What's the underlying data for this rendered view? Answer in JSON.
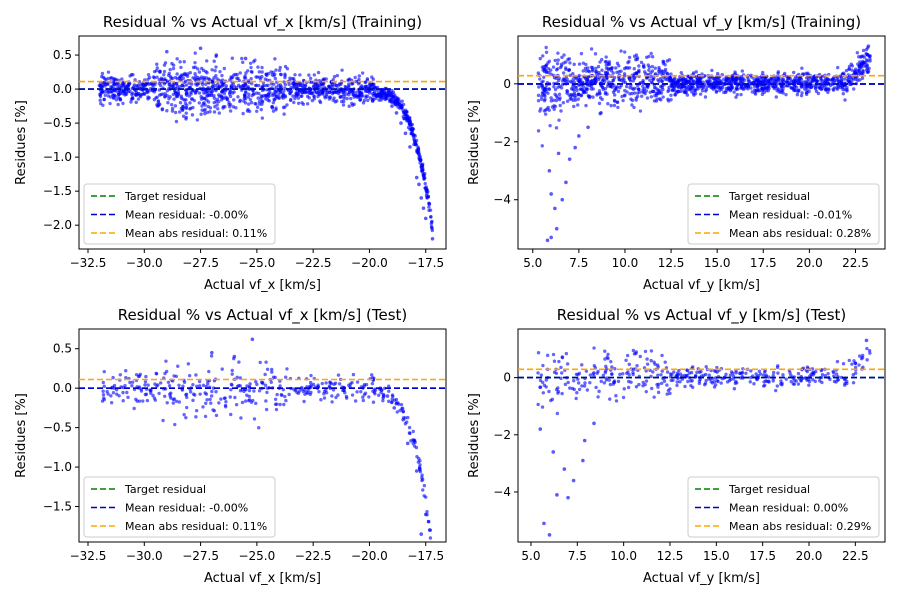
{
  "chart_data": [
    {
      "type": "scatter",
      "title": "Residual % vs Actual vf_x [km/s] (Training)",
      "xlabel": "Actual vf_x [km/s]",
      "ylabel": "Residues [%]",
      "xlim": [
        -32.9,
        -16.6
      ],
      "ylim": [
        -2.35,
        0.78
      ],
      "xticks": [
        -32.5,
        -30.0,
        -27.5,
        -25.0,
        -22.5,
        -20.0,
        -17.5
      ],
      "xtick_labels": [
        "−32.5",
        "−30.0",
        "−27.5",
        "−25.0",
        "−22.5",
        "−20.0",
        "−17.5"
      ],
      "yticks": [
        0.5,
        0.0,
        -0.5,
        -1.0,
        -1.5,
        -2.0
      ],
      "ytick_labels": [
        "0.5",
        "0.0",
        "−0.5",
        "−1.0",
        "−1.5",
        "−2.0"
      ],
      "series": [
        {
          "name": "Target residual",
          "kind": "hline",
          "y": 0.0,
          "color": "#008000"
        },
        {
          "name": "Mean residual: -0.00%",
          "kind": "hline",
          "y": -0.0,
          "color": "#0000cc"
        },
        {
          "name": "Mean abs residual: 0.11%",
          "kind": "hline",
          "y": 0.11,
          "color": "#ffa500"
        },
        {
          "name": "",
          "kind": "scatter",
          "color": "#0000ff",
          "x_range": [
            -32.0,
            -17.2
          ],
          "points": [
            [
              -17.2,
              -2.2
            ],
            [
              -17.5,
              -1.9
            ],
            [
              -17.6,
              -1.75
            ],
            [
              -17.7,
              -1.6
            ],
            [
              -17.8,
              -1.4
            ],
            [
              -17.9,
              -1.3
            ],
            [
              -18.2,
              -0.85
            ],
            [
              -18.4,
              -0.65
            ],
            [
              -18.6,
              -0.5
            ],
            [
              -18.8,
              -0.35
            ],
            [
              -19.0,
              -0.25
            ],
            [
              -19.3,
              -0.15
            ],
            [
              -29.0,
              0.55
            ],
            [
              -27.5,
              0.6
            ],
            [
              -26.8,
              0.5
            ],
            [
              -25.5,
              0.45
            ]
          ]
        }
      ],
      "legend": "lower-left"
    },
    {
      "type": "scatter",
      "title": "Residual % vs Actual vf_y [km/s] (Training)",
      "xlabel": "Actual vf_y [km/s]",
      "ylabel": "Residues [%]",
      "xlim": [
        4.2,
        24.1
      ],
      "ylim": [
        -5.7,
        1.65
      ],
      "xticks": [
        5.0,
        7.5,
        10.0,
        12.5,
        15.0,
        17.5,
        20.0,
        22.5
      ],
      "xtick_labels": [
        "5.0",
        "7.5",
        "10.0",
        "12.5",
        "15.0",
        "17.5",
        "20.0",
        "22.5"
      ],
      "yticks": [
        0,
        -2,
        -4
      ],
      "ytick_labels": [
        "0",
        "−2",
        "−4"
      ],
      "series": [
        {
          "name": "Target residual",
          "kind": "hline",
          "y": 0.0,
          "color": "#008000"
        },
        {
          "name": "Mean residual: -0.01%",
          "kind": "hline",
          "y": -0.01,
          "color": "#0000cc"
        },
        {
          "name": "Mean abs residual: 0.28%",
          "kind": "hline",
          "y": 0.28,
          "color": "#ffa500"
        },
        {
          "name": "",
          "kind": "scatter",
          "color": "#0000ff",
          "x_range": [
            5.3,
            23.3
          ],
          "points": [
            [
              5.8,
              -5.4
            ],
            [
              6.0,
              -5.3
            ],
            [
              6.3,
              -5.0
            ],
            [
              6.2,
              -4.3
            ],
            [
              6.6,
              -4.0
            ],
            [
              6.0,
              -3.8
            ],
            [
              6.8,
              -3.4
            ],
            [
              5.9,
              -3.0
            ],
            [
              7.0,
              -2.6
            ],
            [
              6.4,
              -2.4
            ],
            [
              7.3,
              -2.2
            ],
            [
              7.5,
              -1.8
            ],
            [
              8.0,
              -1.5
            ],
            [
              8.7,
              -1.0
            ],
            [
              22.8,
              0.7
            ],
            [
              23.2,
              1.3
            ]
          ]
        }
      ],
      "legend": "lower-right"
    },
    {
      "type": "scatter",
      "title": "Residual % vs Actual vf_x [km/s] (Test)",
      "xlabel": "Actual vf_x [km/s]",
      "ylabel": "Residues [%]",
      "xlim": [
        -32.9,
        -16.6
      ],
      "ylim": [
        -1.95,
        0.75
      ],
      "xticks": [
        -32.5,
        -30.0,
        -27.5,
        -25.0,
        -22.5,
        -20.0,
        -17.5
      ],
      "xtick_labels": [
        "−32.5",
        "−30.0",
        "−27.5",
        "−25.0",
        "−22.5",
        "−20.0",
        "−17.5"
      ],
      "yticks": [
        0.5,
        0.0,
        -0.5,
        -1.0,
        -1.5
      ],
      "ytick_labels": [
        "0.5",
        "0.0",
        "−0.5",
        "−1.0",
        "−1.5"
      ],
      "series": [
        {
          "name": "Target residual",
          "kind": "hline",
          "y": 0.0,
          "color": "#008000"
        },
        {
          "name": "Mean residual: -0.00%",
          "kind": "hline",
          "y": -0.0,
          "color": "#0000cc"
        },
        {
          "name": "Mean abs residual: 0.11%",
          "kind": "hline",
          "y": 0.11,
          "color": "#ffa500"
        },
        {
          "name": "",
          "kind": "scatter",
          "color": "#0000ff",
          "x_range": [
            -32.0,
            -17.2
          ],
          "points": [
            [
              -17.3,
              -1.8
            ],
            [
              -17.5,
              -1.6
            ],
            [
              -17.7,
              -1.85
            ],
            [
              -17.9,
              -1.05
            ],
            [
              -18.3,
              -0.7
            ],
            [
              -18.5,
              -0.4
            ],
            [
              -18.9,
              -0.25
            ],
            [
              -19.2,
              -0.1
            ],
            [
              -25.2,
              0.62
            ],
            [
              -27.0,
              0.45
            ],
            [
              -26.0,
              0.4
            ]
          ]
        }
      ],
      "legend": "lower-left"
    },
    {
      "type": "scatter",
      "title": "Residual % vs Actual vf_y [km/s] (Test)",
      "xlabel": "Actual vf_y [km/s]",
      "ylabel": "Residues [%]",
      "xlim": [
        4.3,
        24.1
      ],
      "ylim": [
        -5.75,
        1.7
      ],
      "xticks": [
        5.0,
        7.5,
        10.0,
        12.5,
        15.0,
        17.5,
        20.0,
        22.5
      ],
      "xtick_labels": [
        "5.0",
        "7.5",
        "10.0",
        "12.5",
        "15.0",
        "17.5",
        "20.0",
        "22.5"
      ],
      "yticks": [
        0,
        -2,
        -4
      ],
      "ytick_labels": [
        "0",
        "−2",
        "−4"
      ],
      "series": [
        {
          "name": "Target residual",
          "kind": "hline",
          "y": 0.0,
          "color": "#008000"
        },
        {
          "name": "Mean residual: 0.00%",
          "kind": "hline",
          "y": 0.0,
          "color": "#0000cc"
        },
        {
          "name": "Mean abs residual: 0.29%",
          "kind": "hline",
          "y": 0.29,
          "color": "#ffa500"
        },
        {
          "name": "",
          "kind": "scatter",
          "color": "#0000ff",
          "x_range": [
            5.3,
            23.3
          ],
          "points": [
            [
              6.0,
              -5.5
            ],
            [
              5.7,
              -5.1
            ],
            [
              6.4,
              -4.1
            ],
            [
              7.0,
              -4.2
            ],
            [
              7.3,
              -3.6
            ],
            [
              6.8,
              -3.2
            ],
            [
              7.8,
              -2.9
            ],
            [
              6.2,
              -2.6
            ],
            [
              7.9,
              -2.2
            ],
            [
              8.4,
              -1.6
            ],
            [
              5.5,
              -1.8
            ],
            [
              22.5,
              0.5
            ],
            [
              23.1,
              1.3
            ]
          ]
        }
      ],
      "legend": "lower-right"
    }
  ]
}
